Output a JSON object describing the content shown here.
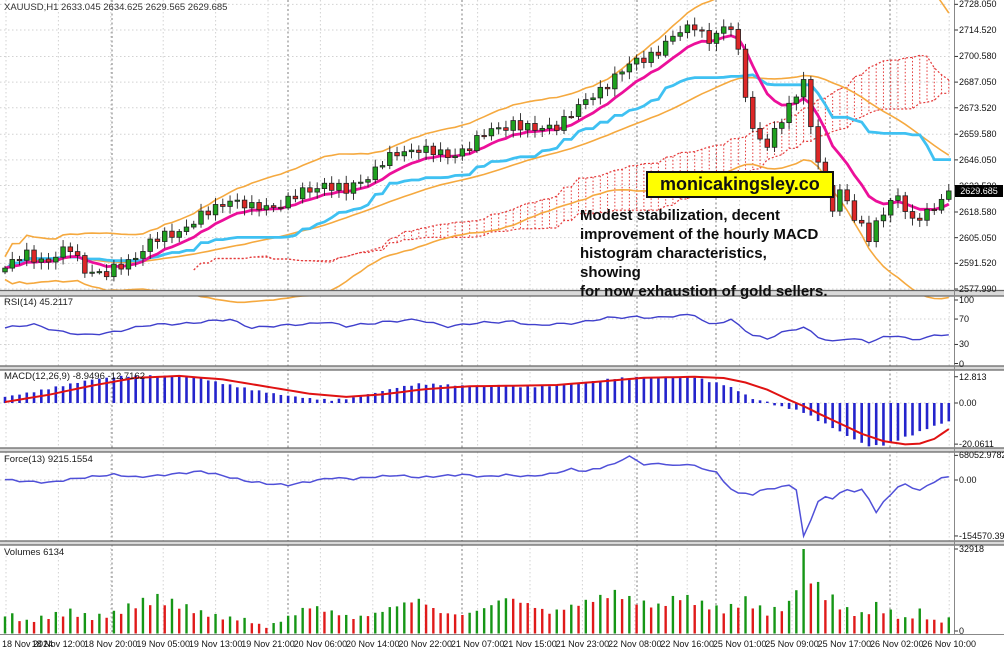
{
  "header": {
    "symbol_label": "XAUUSD,H1 2633.045 2634.625 2629.565 2629.685"
  },
  "pane_labels": {
    "rsi": "RSI(14) 45.2117",
    "macd": "MACD(12,26,9) -8.9496 -12.7162",
    "force": "Force(13) 9215.1554",
    "volumes": "Volumes 6134"
  },
  "annotation": {
    "badge": "monicakingsley.co",
    "badge_bg": "#ffff00",
    "note_lines": [
      "Modest stabilization, decent",
      "improvement of the hourly MACD",
      "histogram characteristics, showing",
      "for now exhaustion of gold sellers."
    ]
  },
  "price_tag": "2629.685",
  "axes": {
    "main": [
      "2728.050",
      "2714.520",
      "2700.580",
      "2687.050",
      "2673.520",
      "2659.580",
      "2646.050",
      "2632.520",
      "2618.580",
      "2605.050",
      "2591.520",
      "2577.990"
    ],
    "rsi": [
      "100",
      "70",
      "30",
      "0"
    ],
    "macd": [
      "12.813",
      "0.00",
      "-20.0611"
    ],
    "force": [
      "68052.9782",
      "0.00",
      "-154570.39"
    ],
    "volumes": [
      "32918",
      "0"
    ]
  },
  "time_labels": [
    "18 Nov 2024",
    "18 Nov 12:00",
    "18 Nov 20:00",
    "19 Nov 05:00",
    "19 Nov 13:00",
    "19 Nov 21:00",
    "20 Nov 06:00",
    "20 Nov 14:00",
    "20 Nov 22:00",
    "21 Nov 07:00",
    "21 Nov 15:00",
    "21 Nov 23:00",
    "22 Nov 08:00",
    "22 Nov 16:00",
    "25 Nov 01:00",
    "25 Nov 09:00",
    "25 Nov 17:00",
    "26 Nov 02:00",
    "26 Nov 10:00"
  ],
  "colors": {
    "up": "#1fa11f",
    "down": "#dd2727",
    "outline": "#222222",
    "bollinger": "#f5a93f",
    "ma_fast": "#ec0f9a",
    "kijun": "#3fc1f2",
    "cloud": "#e43b3b",
    "rsi_line": "#4040cc",
    "macd_bar": "#2424cc",
    "macd_signal": "#e01212",
    "force_line": "#5050d8",
    "vol_up": "#169616",
    "vol_down": "#e01a1a",
    "grid": "#d2d2d2",
    "day_sep": "#7d7d7d",
    "frame": "#888888"
  },
  "chart_data": {
    "type": "candlestick",
    "symbol": "XAUUSD",
    "timeframe": "H1",
    "last_ohlc": {
      "open": 2633.045,
      "high": 2634.625,
      "low": 2629.565,
      "close": 2629.685
    },
    "n_candles": 131,
    "price_range_visible": [
      2577.99,
      2728.05
    ],
    "indicators": {
      "rsi_last": 45.2117,
      "macd_last": -8.9496,
      "macd_signal_last": -12.7162,
      "force_last": 9215.1554,
      "volume_last": 6134,
      "volume_max": 32918,
      "macd_range": [
        12.813,
        -20.0611
      ],
      "force_range": [
        68052.9782,
        -154570.39
      ]
    },
    "close_keypoints": [
      [
        0,
        2589
      ],
      [
        3,
        2596
      ],
      [
        6,
        2593
      ],
      [
        9,
        2599
      ],
      [
        11,
        2589
      ],
      [
        14,
        2585
      ],
      [
        17,
        2593
      ],
      [
        20,
        2602
      ],
      [
        24,
        2609
      ],
      [
        28,
        2618
      ],
      [
        31,
        2626
      ],
      [
        34,
        2620
      ],
      [
        38,
        2623
      ],
      [
        42,
        2630
      ],
      [
        44,
        2634
      ],
      [
        47,
        2629
      ],
      [
        50,
        2638
      ],
      [
        52,
        2645
      ],
      [
        55,
        2650
      ],
      [
        57,
        2653
      ],
      [
        61,
        2647
      ],
      [
        64,
        2654
      ],
      [
        66,
        2659
      ],
      [
        70,
        2666
      ],
      [
        73,
        2661
      ],
      [
        76,
        2665
      ],
      [
        79,
        2673
      ],
      [
        83,
        2687
      ],
      [
        87,
        2698
      ],
      [
        90,
        2704
      ],
      [
        93,
        2713
      ],
      [
        95,
        2718
      ],
      [
        97,
        2709
      ],
      [
        99,
        2714
      ],
      [
        100,
        2716
      ],
      [
        101,
        2703
      ],
      [
        103,
        2662
      ],
      [
        105,
        2652
      ],
      [
        107,
        2668
      ],
      [
        109,
        2682
      ],
      [
        110,
        2688
      ],
      [
        111,
        2662
      ],
      [
        112,
        2645
      ],
      [
        113,
        2630
      ],
      [
        114,
        2622
      ],
      [
        115,
        2630
      ],
      [
        116,
        2626
      ],
      [
        117,
        2614
      ],
      [
        118,
        2610
      ],
      [
        119,
        2604
      ],
      [
        120,
        2612
      ],
      [
        121,
        2620
      ],
      [
        122,
        2625
      ],
      [
        123,
        2627
      ],
      [
        124,
        2619
      ],
      [
        125,
        2612
      ],
      [
        126,
        2616
      ],
      [
        127,
        2619
      ],
      [
        128,
        2622
      ],
      [
        129,
        2626
      ],
      [
        130,
        2629.685
      ]
    ],
    "rsi_keypoints": [
      [
        0,
        56
      ],
      [
        4,
        61
      ],
      [
        8,
        50
      ],
      [
        11,
        44
      ],
      [
        14,
        48
      ],
      [
        17,
        55
      ],
      [
        20,
        60
      ],
      [
        24,
        63
      ],
      [
        28,
        66
      ],
      [
        31,
        69
      ],
      [
        34,
        57
      ],
      [
        38,
        59
      ],
      [
        42,
        63
      ],
      [
        44,
        66
      ],
      [
        47,
        58
      ],
      [
        52,
        66
      ],
      [
        57,
        68
      ],
      [
        61,
        59
      ],
      [
        66,
        64
      ],
      [
        70,
        67
      ],
      [
        73,
        59
      ],
      [
        79,
        65
      ],
      [
        83,
        71
      ],
      [
        87,
        74
      ],
      [
        90,
        72
      ],
      [
        93,
        75
      ],
      [
        95,
        77
      ],
      [
        97,
        62
      ],
      [
        100,
        68
      ],
      [
        103,
        44
      ],
      [
        105,
        40
      ],
      [
        107,
        49
      ],
      [
        109,
        54
      ],
      [
        110,
        56
      ],
      [
        112,
        42
      ],
      [
        114,
        35
      ],
      [
        116,
        40
      ],
      [
        118,
        36
      ],
      [
        119,
        33
      ],
      [
        121,
        41
      ],
      [
        123,
        45
      ],
      [
        125,
        37
      ],
      [
        127,
        41
      ],
      [
        129,
        44
      ],
      [
        130,
        45.2117
      ]
    ],
    "macd_keypoints": [
      [
        0,
        3
      ],
      [
        4,
        5.5
      ],
      [
        8,
        8.5
      ],
      [
        12,
        11.5
      ],
      [
        16,
        13
      ],
      [
        20,
        13.2
      ],
      [
        24,
        13
      ],
      [
        27,
        12
      ],
      [
        30,
        9.5
      ],
      [
        34,
        6.5
      ],
      [
        38,
        4
      ],
      [
        42,
        2.2
      ],
      [
        45,
        1.4
      ],
      [
        48,
        2.5
      ],
      [
        51,
        5
      ],
      [
        54,
        7.5
      ],
      [
        57,
        9.3
      ],
      [
        60,
        9
      ],
      [
        64,
        8.3
      ],
      [
        68,
        8.6
      ],
      [
        72,
        7.8
      ],
      [
        76,
        8.6
      ],
      [
        80,
        10
      ],
      [
        84,
        12
      ],
      [
        88,
        12.6
      ],
      [
        92,
        12.2
      ],
      [
        95,
        12.6
      ],
      [
        97,
        10.5
      ],
      [
        99,
        9
      ],
      [
        101,
        6
      ],
      [
        103,
        2
      ],
      [
        105,
        0.6
      ],
      [
        106,
        -1
      ],
      [
        108,
        -2.6
      ],
      [
        110,
        -4.5
      ],
      [
        112,
        -8.5
      ],
      [
        114,
        -12
      ],
      [
        116,
        -16
      ],
      [
        118,
        -19.5
      ],
      [
        119,
        -21
      ],
      [
        121,
        -20.5
      ],
      [
        123,
        -18
      ],
      [
        125,
        -15.5
      ],
      [
        127,
        -12.5
      ],
      [
        129,
        -10
      ],
      [
        130,
        -8.9496
      ]
    ],
    "signal_keypoints": [
      [
        0,
        0.5
      ],
      [
        6,
        4
      ],
      [
        12,
        8.5
      ],
      [
        18,
        12.3
      ],
      [
        24,
        13.2
      ],
      [
        30,
        11.5
      ],
      [
        36,
        8
      ],
      [
        42,
        4.5
      ],
      [
        47,
        3
      ],
      [
        52,
        4.2
      ],
      [
        58,
        6.8
      ],
      [
        64,
        8.2
      ],
      [
        70,
        8.4
      ],
      [
        76,
        8.8
      ],
      [
        82,
        10.5
      ],
      [
        88,
        12.3
      ],
      [
        95,
        12.8
      ],
      [
        99,
        12.2
      ],
      [
        102,
        10
      ],
      [
        105,
        6.5
      ],
      [
        108,
        1.5
      ],
      [
        110,
        -1.5
      ],
      [
        112,
        -5
      ],
      [
        115,
        -10
      ],
      [
        118,
        -15
      ],
      [
        121,
        -18.6
      ],
      [
        124,
        -20.2
      ],
      [
        126,
        -19.8
      ],
      [
        128,
        -17.5
      ],
      [
        130,
        -12.7162
      ]
    ],
    "force_keypoints": [
      [
        0,
        1000
      ],
      [
        3,
        -4000
      ],
      [
        6,
        -7000
      ],
      [
        9,
        2000
      ],
      [
        12,
        9000
      ],
      [
        15,
        15000
      ],
      [
        18,
        8000
      ],
      [
        21,
        12000
      ],
      [
        24,
        18000
      ],
      [
        27,
        24000
      ],
      [
        30,
        12000
      ],
      [
        33,
        -2000
      ],
      [
        36,
        -10000
      ],
      [
        39,
        -14000
      ],
      [
        42,
        -4000
      ],
      [
        45,
        6000
      ],
      [
        48,
        3000
      ],
      [
        51,
        9000
      ],
      [
        54,
        13000
      ],
      [
        57,
        7000
      ],
      [
        60,
        11000
      ],
      [
        63,
        15000
      ],
      [
        66,
        9000
      ],
      [
        69,
        14000
      ],
      [
        72,
        10000
      ],
      [
        75,
        16000
      ],
      [
        78,
        30000
      ],
      [
        80,
        24000
      ],
      [
        82,
        34000
      ],
      [
        84,
        45000
      ],
      [
        86,
        66000
      ],
      [
        88,
        42000
      ],
      [
        90,
        46000
      ],
      [
        92,
        40000
      ],
      [
        94,
        43000
      ],
      [
        96,
        33000
      ],
      [
        98,
        20000
      ],
      [
        100,
        -25000
      ],
      [
        101,
        -38000
      ],
      [
        102,
        -34000
      ],
      [
        103,
        -42000
      ],
      [
        104,
        -30000
      ],
      [
        105,
        -22000
      ],
      [
        106,
        -26000
      ],
      [
        107,
        -18000
      ],
      [
        108,
        -12000
      ],
      [
        109,
        -30000
      ],
      [
        110,
        -154570
      ],
      [
        111,
        -110000
      ],
      [
        112,
        -60000
      ],
      [
        113,
        -46000
      ],
      [
        114,
        -52000
      ],
      [
        115,
        -38000
      ],
      [
        116,
        -25000
      ],
      [
        117,
        -32000
      ],
      [
        118,
        -28000
      ],
      [
        119,
        -52000
      ],
      [
        120,
        -90000
      ],
      [
        121,
        -60000
      ],
      [
        122,
        -38000
      ],
      [
        123,
        -20000
      ],
      [
        124,
        -12000
      ],
      [
        125,
        -20000
      ],
      [
        126,
        -30000
      ],
      [
        127,
        -16000
      ],
      [
        128,
        -4000
      ],
      [
        129,
        4000
      ],
      [
        130,
        9215.1554
      ]
    ],
    "volume_keypoints": [
      [
        0,
        9000
      ],
      [
        3,
        5200
      ],
      [
        6,
        7600
      ],
      [
        9,
        9600
      ],
      [
        12,
        7000
      ],
      [
        15,
        8800
      ],
      [
        18,
        13200
      ],
      [
        21,
        15600
      ],
      [
        24,
        12800
      ],
      [
        27,
        9200
      ],
      [
        30,
        7000
      ],
      [
        33,
        6200
      ],
      [
        36,
        2600
      ],
      [
        39,
        7200
      ],
      [
        42,
        12200
      ],
      [
        45,
        9600
      ],
      [
        48,
        6800
      ],
      [
        51,
        8800
      ],
      [
        54,
        12600
      ],
      [
        57,
        15200
      ],
      [
        60,
        9200
      ],
      [
        63,
        8200
      ],
      [
        66,
        11200
      ],
      [
        69,
        16200
      ],
      [
        72,
        13200
      ],
      [
        75,
        9200
      ],
      [
        78,
        12200
      ],
      [
        81,
        15200
      ],
      [
        84,
        18200
      ],
      [
        87,
        14200
      ],
      [
        90,
        12200
      ],
      [
        93,
        16800
      ],
      [
        96,
        13200
      ],
      [
        99,
        10200
      ],
      [
        102,
        14800
      ],
      [
        105,
        9200
      ],
      [
        108,
        12800
      ],
      [
        110,
        32918
      ],
      [
        112,
        20200
      ],
      [
        114,
        15200
      ],
      [
        116,
        10200
      ],
      [
        118,
        8200
      ],
      [
        120,
        12200
      ],
      [
        122,
        9200
      ],
      [
        124,
        6200
      ],
      [
        126,
        9600
      ],
      [
        128,
        5200
      ],
      [
        130,
        6134
      ]
    ],
    "day_separator_x": [
      112,
      288,
      462,
      637,
      716,
      890
    ]
  }
}
